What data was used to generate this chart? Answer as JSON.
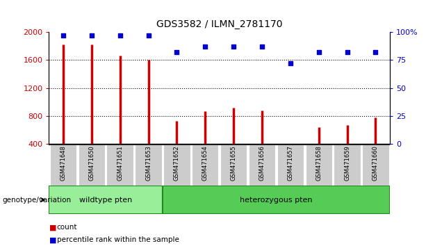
{
  "title": "GDS3582 / ILMN_2781170",
  "categories": [
    "GSM471648",
    "GSM471650",
    "GSM471651",
    "GSM471653",
    "GSM471652",
    "GSM471654",
    "GSM471655",
    "GSM471656",
    "GSM471657",
    "GSM471658",
    "GSM471659",
    "GSM471660"
  ],
  "bar_values": [
    1820,
    1820,
    1660,
    1600,
    730,
    870,
    920,
    880,
    390,
    640,
    670,
    780
  ],
  "percentile_values": [
    97,
    97,
    97,
    97,
    82,
    87,
    87,
    87,
    72,
    82,
    82,
    82
  ],
  "bar_color": "#cc0000",
  "dot_color": "#0000cc",
  "ylim_left": [
    400,
    2000
  ],
  "ylim_right": [
    0,
    100
  ],
  "yticks_left": [
    400,
    800,
    1200,
    1600,
    2000
  ],
  "yticks_right": [
    0,
    25,
    50,
    75,
    100
  ],
  "grid_values": [
    800,
    1200,
    1600
  ],
  "wildtype_count": 4,
  "heterozygous_count": 8,
  "wildtype_label": "wildtype pten",
  "heterozygous_label": "heterozygous pten",
  "genotype_label": "genotype/variation",
  "legend_count_label": "count",
  "legend_percentile_label": "percentile rank within the sample",
  "bar_width": 0.018,
  "tick_bg_color": "#cccccc",
  "wildtype_bg_color": "#99ee99",
  "heterozygous_bg_color": "#55cc55",
  "plot_bg_color": "#ffffff",
  "right_axis_color": "#0000cc",
  "left_axis_color": "#cc0000",
  "stem_linewidth": 2.5
}
